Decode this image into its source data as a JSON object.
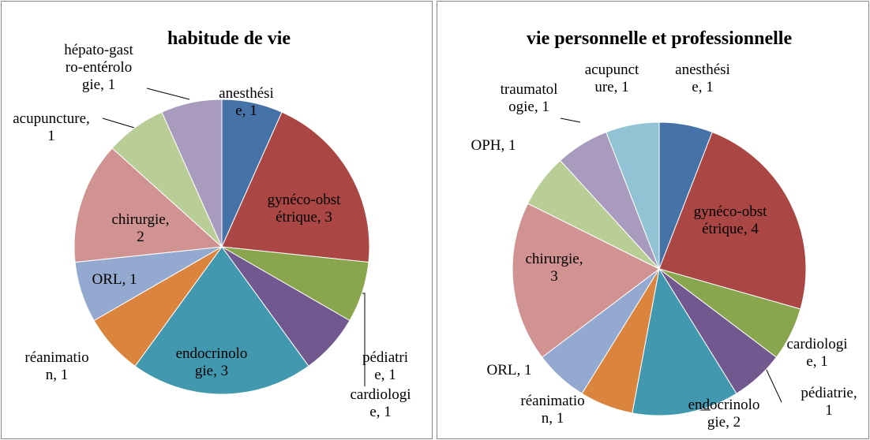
{
  "chart_data": [
    {
      "type": "pie",
      "title": "habitude de vie",
      "labels": [
        "anesthésie, 1",
        "gynéco-obstétrique, 3",
        "cardiologie, 1",
        "pédiatrie, 1",
        "endocrinologie, 3",
        "réanimation, 1",
        "ORL, 1",
        "chirurgie, 2",
        "acupuncture, 1",
        "hépato-gastro-entérologie, 1"
      ],
      "values": [
        1,
        3,
        1,
        1,
        3,
        1,
        1,
        2,
        1,
        1
      ],
      "colors": [
        "#4572a7",
        "#aa4643",
        "#89a54e",
        "#71588f",
        "#4198af",
        "#db843d",
        "#93a9cf",
        "#d19392",
        "#b9cd96",
        "#a99bbd"
      ]
    },
    {
      "type": "pie",
      "title": "vie personnelle et professionnelle",
      "labels": [
        "anesthésie, 1",
        "gynéco-obstétrique, 4",
        "cardiologie, 1",
        "pédiatrie, 1",
        "endocrinologie, 2",
        "réanimation, 1",
        "ORL, 1",
        "chirurgie, 3",
        "OPH, 1",
        "traumatologie, 1",
        "acupuncture, 1"
      ],
      "values": [
        1,
        4,
        1,
        1,
        2,
        1,
        1,
        3,
        1,
        1,
        1
      ],
      "colors": [
        "#4572a7",
        "#aa4643",
        "#89a54e",
        "#71588f",
        "#4198af",
        "#db843d",
        "#93a9cf",
        "#d19392",
        "#b9cd96",
        "#a99bbd",
        "#92c3d5"
      ]
    }
  ]
}
